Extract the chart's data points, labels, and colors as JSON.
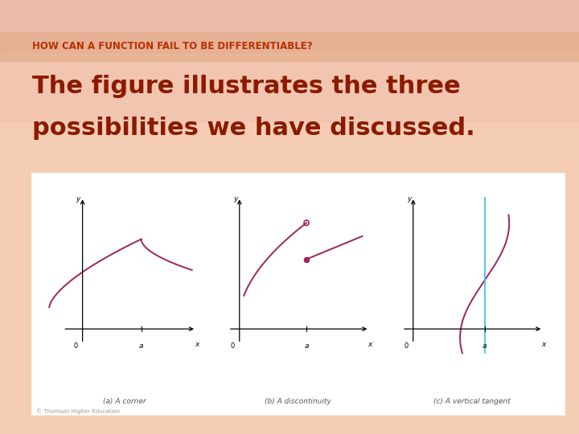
{
  "title_line1": "HOW CAN A FUNCTION FAIL TO BE DIFFERENTIABLE?",
  "subtitle_line1": "The figure illustrates the three",
  "subtitle_line2": "possibilities we have discussed.",
  "title_color": "#b83000",
  "subtitle_color": "#8b1a00",
  "bg_color": "#f5cdb5",
  "bg_top_color": "#f0c0a0",
  "panel_bg": "#ffffff",
  "panel_border": "#c8a070",
  "curve_color": "#9b2560",
  "tangent_color": "#40c8d8",
  "caption_color": "#555555",
  "captions": [
    "(a) A corner",
    "(b) A discontinuity",
    "(c) A vertical tangent"
  ],
  "copyright": "© Thomson Higher Education",
  "banner_color": "#e8a878"
}
